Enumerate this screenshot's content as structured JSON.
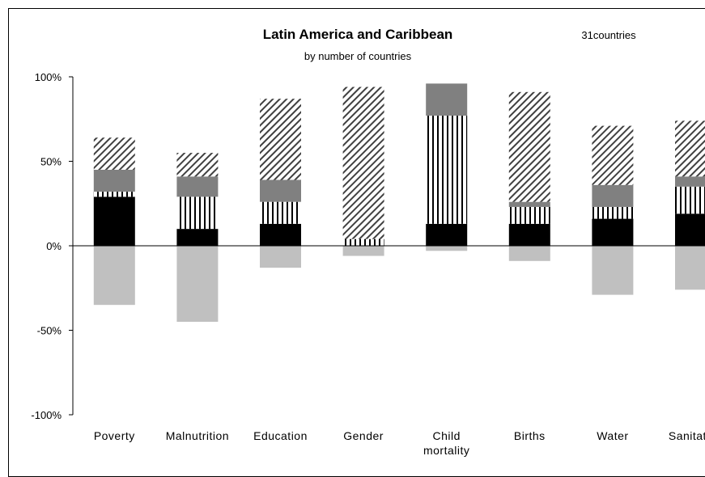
{
  "chart_data": {
    "type": "bar",
    "stacked": true,
    "title": "Latin America and Caribbean",
    "subtitle": "by number of countries",
    "annotation": "31countries",
    "xlabel": "",
    "ylabel": "",
    "ylim": [
      -100,
      100
    ],
    "yticks": [
      100,
      50,
      0,
      -50,
      -100
    ],
    "ytick_labels": [
      "100%",
      "50%",
      "0%",
      "-50%",
      "-100%"
    ],
    "grid": false,
    "legend": "none",
    "categories": [
      "Poverty",
      "Malnutrition",
      "Education",
      "Gender",
      "Child mortality",
      "Births",
      "Water",
      "Sanitation"
    ],
    "category_labels": [
      [
        "Poverty"
      ],
      [
        "Malnutrition"
      ],
      [
        "Education"
      ],
      [
        "Gender"
      ],
      [
        "Child",
        "mortality"
      ],
      [
        "Births"
      ],
      [
        "Water"
      ],
      [
        "Sanitation"
      ]
    ],
    "series": [
      {
        "fill": "solid-black",
        "color": "#000000",
        "values": [
          29,
          10,
          13,
          0,
          13,
          13,
          16,
          19
        ]
      },
      {
        "fill": "vertical-lines",
        "color": "#000000",
        "values": [
          3,
          19,
          13,
          4,
          64,
          10,
          7,
          16
        ]
      },
      {
        "fill": "solid-gray",
        "color": "#808080",
        "values": [
          13,
          12,
          13,
          0,
          19,
          3,
          13,
          6
        ]
      },
      {
        "fill": "diagonal-lines",
        "color": "#404040",
        "values": [
          19,
          14,
          48,
          90,
          0,
          65,
          35,
          33
        ]
      },
      {
        "fill": "solid-light-gray",
        "color": "#c0c0c0",
        "values": [
          -35,
          -45,
          -13,
          -6,
          -3,
          -9,
          -29,
          -26
        ]
      }
    ]
  }
}
